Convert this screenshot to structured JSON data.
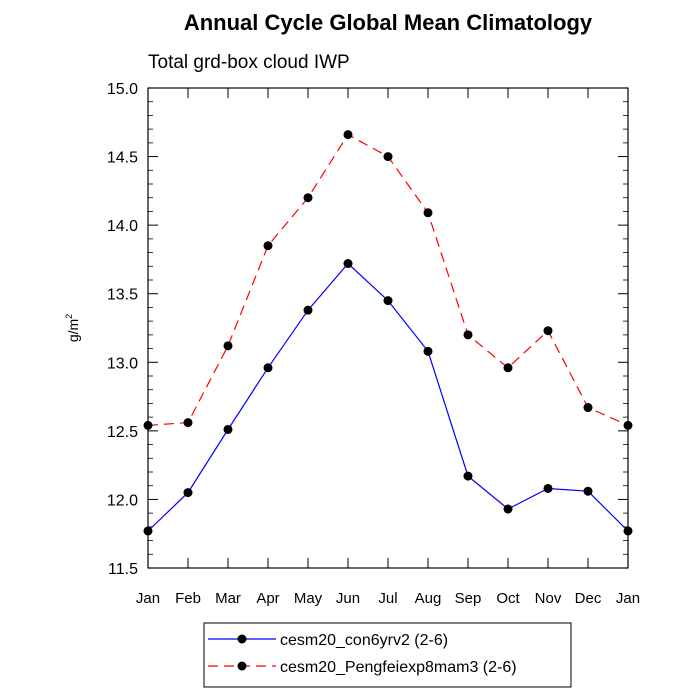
{
  "chart_data": {
    "type": "line",
    "title": "Annual Cycle Global Mean Climatology",
    "subtitle": "Total grd-box cloud IWP",
    "ylabel": "g/m",
    "ylabel_sup": "2",
    "ylim": [
      11.5,
      15.0
    ],
    "yticks": [
      "11.5",
      "12.0",
      "12.5",
      "13.0",
      "13.5",
      "14.0",
      "14.5",
      "15.0"
    ],
    "categories": [
      "Jan",
      "Feb",
      "Mar",
      "Apr",
      "May",
      "Jun",
      "Jul",
      "Aug",
      "Sep",
      "Oct",
      "Nov",
      "Dec",
      "Jan"
    ],
    "series": [
      {
        "name": "cesm20_con6yrv2 (2-6)",
        "color": "#0000ff",
        "dash": "solid",
        "values": [
          11.77,
          12.05,
          12.51,
          12.96,
          13.38,
          13.72,
          13.45,
          13.08,
          12.17,
          11.93,
          12.08,
          12.06,
          11.77
        ]
      },
      {
        "name": "cesm20_Pengfeiexp8mam3 (2-6)",
        "color": "#ff0000",
        "dash": "dashed",
        "values": [
          12.54,
          12.56,
          13.12,
          13.85,
          14.2,
          14.66,
          14.5,
          14.09,
          13.2,
          12.96,
          13.23,
          12.67,
          12.54
        ]
      }
    ],
    "grid": false,
    "legend_position": "bottom"
  }
}
